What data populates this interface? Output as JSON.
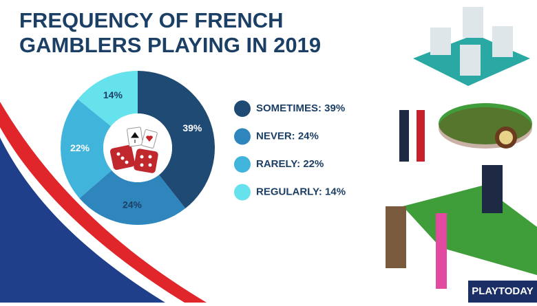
{
  "chart_data": {
    "type": "donut",
    "title": [
      "FREQUENCY OF FRENCH",
      "GAMBLERS PLAYING IN 2019"
    ],
    "categories": [
      "SOMETIMES: 39%",
      "NEVER: 24%",
      "RARELY: 22%",
      "REGULARLY: 14%"
    ],
    "values": [
      39,
      24,
      22,
      14
    ],
    "value_labels": [
      "39%",
      "24%",
      "22%",
      "14%"
    ],
    "colors": [
      "#1f4a73",
      "#2f86bd",
      "#41b4dc",
      "#66e2ec"
    ],
    "value_label_colors": [
      "#ffffff",
      "#1c3f66",
      "#ffffff",
      "#1c3f66"
    ],
    "legend": "right"
  },
  "logo": "PLAYTODAY"
}
